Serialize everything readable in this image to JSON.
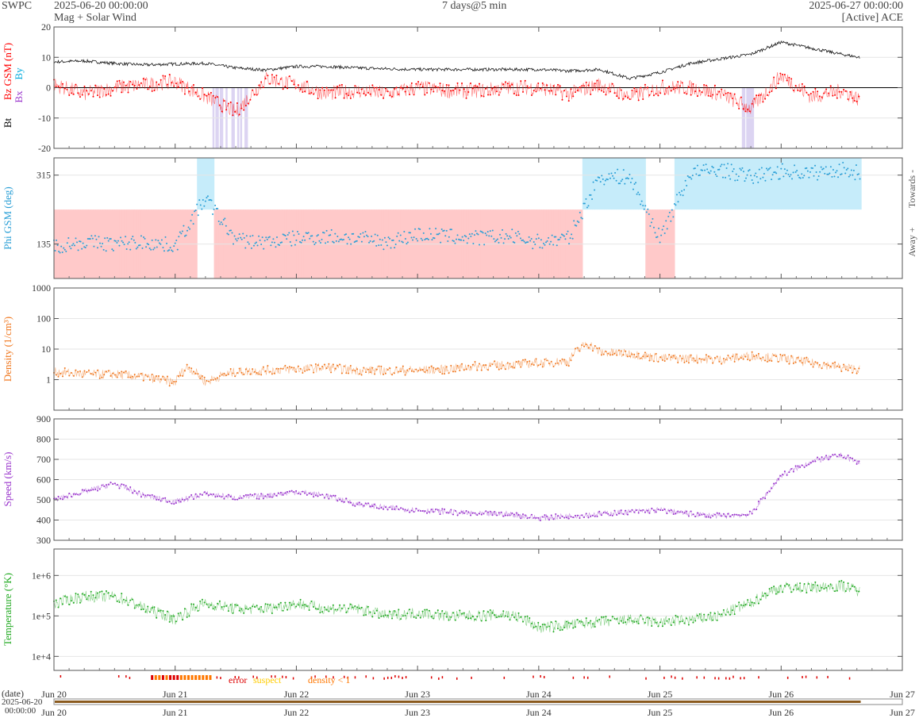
{
  "header": {
    "source": "SWPC",
    "start": "2025-06-20 00:00:00",
    "subtitle": "Mag + Solar Wind",
    "span": "7 days@5 min",
    "end": "2025-06-27 00:00:00",
    "spacecraft": "[Active] ACE"
  },
  "colors": {
    "bt": "#000000",
    "bz": "#ff0000",
    "bx": "#9933cc",
    "by": "#00aadd",
    "phi": "#2a9fd6",
    "towards_fill": "#c6ecfa",
    "away_fill": "#ffc9c9",
    "density": "#f07820",
    "speed": "#9933cc",
    "temperature": "#22aa22",
    "error": "#dd0000",
    "suspect": "#ffcc00",
    "lowdensity": "#ff7700",
    "bz_shade": "#dcd4f2",
    "timebar": "#8a5a1e"
  },
  "chart_data": [
    {
      "id": "mag",
      "type": "line",
      "ylabel_parts": [
        "Bt",
        "Bz GSM (nT)",
        "Bx",
        "By"
      ],
      "ylim": [
        -20,
        20
      ],
      "yticks": [
        -20,
        -10,
        0,
        10,
        20
      ],
      "grid": true,
      "series": [
        {
          "name": "Bt",
          "x": [
            0,
            0.25,
            0.5,
            0.75,
            1,
            1.25,
            1.5,
            1.75,
            2,
            2.25,
            2.5,
            2.75,
            3,
            3.25,
            3.5,
            3.75,
            4,
            4.25,
            4.5,
            4.75,
            5,
            5.25,
            5.5,
            5.75,
            6,
            6.25,
            6.5,
            6.65
          ],
          "values": [
            8.5,
            8.8,
            8,
            7.5,
            7.8,
            8,
            6.5,
            5.8,
            7,
            7,
            6.5,
            6.2,
            6,
            6,
            6,
            6,
            6,
            5.5,
            6,
            3,
            5,
            8,
            9.5,
            11,
            15,
            13,
            11,
            10
          ]
        },
        {
          "name": "Bz GSM",
          "x": [
            0,
            0.25,
            0.5,
            0.75,
            1,
            1.25,
            1.5,
            1.75,
            2,
            2.25,
            2.5,
            2.75,
            3,
            3.25,
            3.5,
            3.75,
            4,
            4.25,
            4.5,
            4.75,
            5,
            5.25,
            5.5,
            5.75,
            6,
            6.25,
            6.5,
            6.65
          ],
          "values": [
            1,
            -2,
            0,
            1,
            2,
            -3,
            -8,
            3,
            1,
            -2,
            -1,
            -2,
            0,
            -1,
            -1,
            0,
            0,
            -2,
            1,
            -3,
            0,
            0,
            -2,
            -7,
            4,
            -3,
            -1,
            -4
          ]
        }
      ]
    },
    {
      "id": "phi",
      "type": "scatter",
      "ylabel": "Phi GSM (deg)",
      "ylim": [
        45,
        360
      ],
      "yticks": [
        135,
        315
      ],
      "side_labels": [
        "Towards -",
        "Away +"
      ],
      "series": [
        {
          "name": "Phi GSM",
          "x": [
            0,
            0.25,
            0.5,
            0.75,
            1,
            1.25,
            1.5,
            1.75,
            2,
            2.25,
            2.5,
            2.75,
            3,
            3.25,
            3.5,
            3.75,
            4,
            4.25,
            4.5,
            4.75,
            5,
            5.25,
            5.5,
            5.75,
            6,
            6.25,
            6.5,
            6.65
          ],
          "values": [
            130,
            140,
            135,
            140,
            130,
            255,
            145,
            140,
            150,
            155,
            150,
            140,
            160,
            155,
            150,
            155,
            140,
            150,
            310,
            310,
            150,
            320,
            330,
            310,
            325,
            320,
            330,
            320
          ]
        }
      ]
    },
    {
      "id": "density",
      "type": "line",
      "ylabel": "Density (1/cm³)",
      "scale": "log",
      "ylim": [
        0.1,
        1000
      ],
      "yticks": [
        1,
        10,
        100,
        1000
      ],
      "series": [
        {
          "name": "Density",
          "x": [
            0,
            0.25,
            0.5,
            0.75,
            1,
            1.1,
            1.25,
            1.5,
            1.75,
            2,
            2.25,
            2.5,
            2.75,
            3,
            3.25,
            3.5,
            3.75,
            4,
            4.25,
            4.4,
            4.5,
            4.75,
            5,
            5.25,
            5.5,
            5.75,
            6,
            6.25,
            6.5,
            6.65
          ],
          "values": [
            1.8,
            1.5,
            1.5,
            1.2,
            0.8,
            2.5,
            0.8,
            1.8,
            2,
            2.2,
            2.5,
            2,
            2,
            2,
            2.2,
            2.8,
            3,
            3.5,
            4,
            15,
            8,
            7,
            5,
            5,
            4.5,
            6,
            5,
            3.5,
            2.5,
            2.2
          ]
        }
      ]
    },
    {
      "id": "speed",
      "type": "line",
      "ylabel": "Speed (km/s)",
      "ylim": [
        300,
        900
      ],
      "yticks": [
        300,
        400,
        500,
        600,
        700,
        800,
        900
      ],
      "series": [
        {
          "name": "Speed",
          "x": [
            0,
            0.25,
            0.5,
            0.75,
            1,
            1.25,
            1.5,
            1.75,
            2,
            2.25,
            2.5,
            2.75,
            3,
            3.25,
            3.5,
            3.75,
            4,
            4.25,
            4.5,
            4.75,
            5,
            5.25,
            5.5,
            5.75,
            6,
            6.25,
            6.5,
            6.65
          ],
          "values": [
            500,
            540,
            580,
            520,
            490,
            530,
            510,
            520,
            540,
            520,
            480,
            460,
            450,
            440,
            430,
            430,
            410,
            420,
            430,
            440,
            450,
            430,
            420,
            430,
            620,
            690,
            720,
            680
          ]
        }
      ]
    },
    {
      "id": "temperature",
      "type": "line",
      "ylabel": "Temperature (°K)",
      "scale": "log",
      "yticks": [
        10000,
        100000,
        1000000
      ],
      "ytick_labels": [
        "1e+4",
        "1e+5",
        "1e+6"
      ],
      "series": [
        {
          "name": "Temperature",
          "x": [
            0,
            0.25,
            0.5,
            0.75,
            1,
            1.25,
            1.5,
            1.75,
            2,
            2.25,
            2.5,
            2.75,
            3,
            3.25,
            3.5,
            3.75,
            4,
            4.25,
            4.5,
            4.75,
            5,
            5.25,
            5.5,
            5.75,
            6,
            6.25,
            6.5,
            6.65
          ],
          "values": [
            200000,
            300000,
            300000,
            150000,
            80000,
            200000,
            150000,
            150000,
            200000,
            150000,
            150000,
            100000,
            120000,
            100000,
            100000,
            110000,
            50000,
            60000,
            70000,
            80000,
            70000,
            80000,
            100000,
            200000,
            500000,
            500000,
            550000,
            400000
          ]
        }
      ]
    }
  ],
  "quality": {
    "error": "error",
    "suspect": "suspect",
    "lowdensity": "density < 1"
  },
  "xaxis": {
    "ticks": [
      "Jun 20",
      "Jun 21",
      "Jun 22",
      "Jun 23",
      "Jun 24",
      "Jun 25",
      "Jun 26",
      "Jun 27"
    ],
    "date_label": "(date)",
    "timebar_label": [
      "2025-06-20",
      "00:00:00"
    ]
  }
}
